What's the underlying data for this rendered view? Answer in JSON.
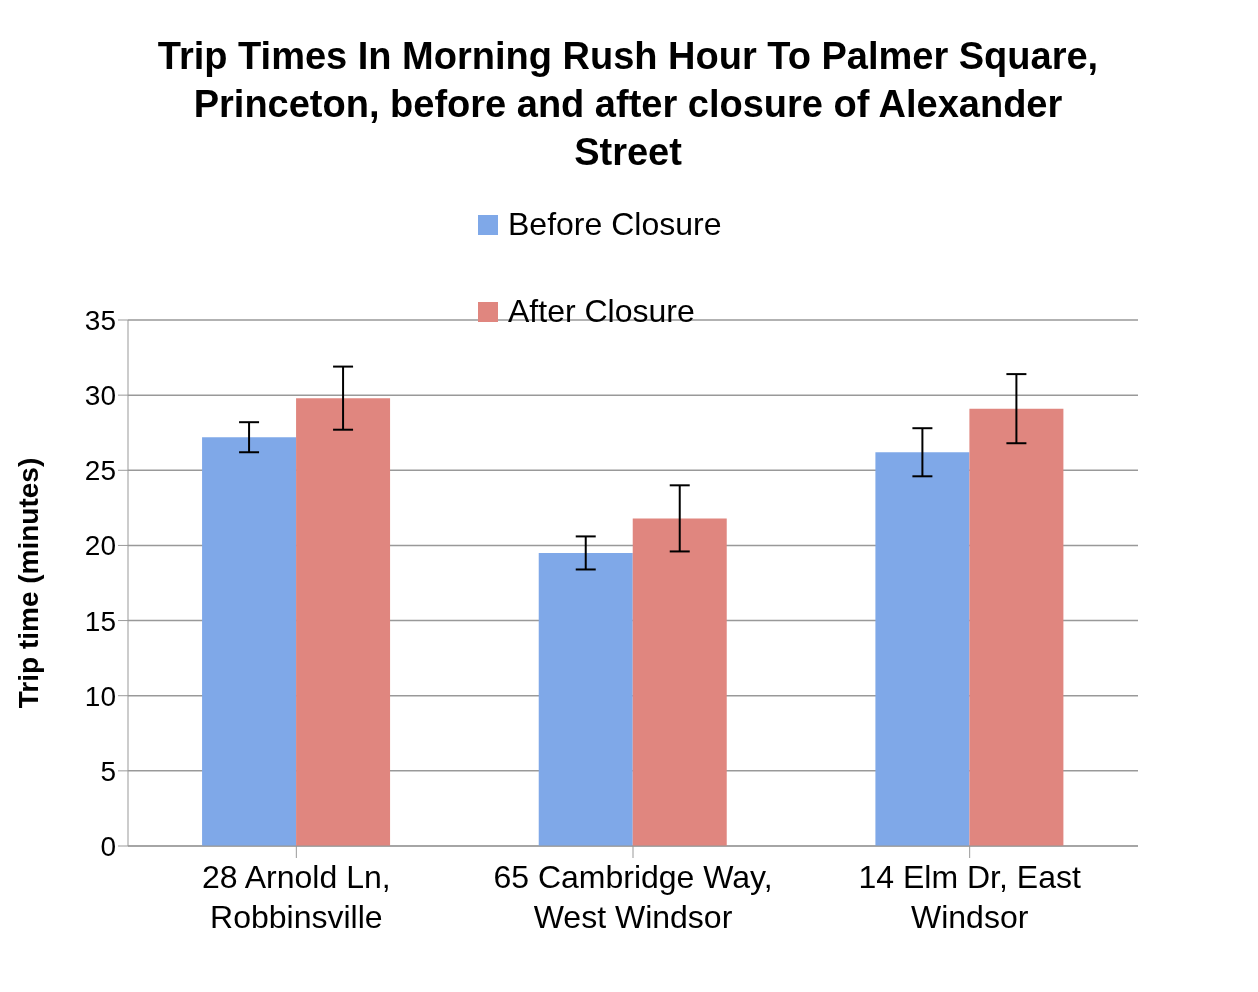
{
  "chart_data": {
    "type": "bar",
    "title": "Trip Times In Morning Rush Hour To Palmer Square, Princeton, before and after closure of Alexander Street",
    "ylabel": "Trip time (minutes)",
    "categories": [
      "28 Arnold Ln, Robbinsville",
      "65 Cambridge Way, West Windsor",
      "14 Elm Dr, East Windsor"
    ],
    "series": [
      {
        "name": "Before Closure",
        "color": "#7fa8e8",
        "values": [
          27.2,
          19.5,
          26.2
        ],
        "errors": [
          1.0,
          1.1,
          1.6
        ]
      },
      {
        "name": "After Closure",
        "color": "#e0867f",
        "values": [
          29.8,
          21.8,
          29.1
        ],
        "errors": [
          2.1,
          2.2,
          2.3
        ]
      }
    ],
    "ylim": [
      0,
      35
    ],
    "yticks": [
      0,
      5,
      10,
      15,
      20,
      25,
      30,
      35
    ],
    "grid": "y",
    "legend": "top"
  }
}
